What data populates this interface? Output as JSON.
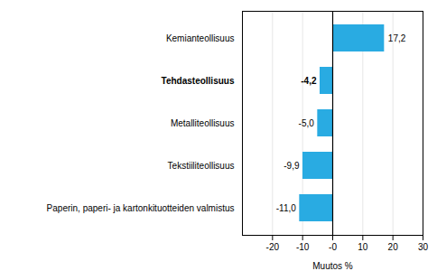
{
  "chart_data": {
    "type": "bar",
    "orientation": "horizontal",
    "categories": [
      "Paperin, paperi- ja kartonkituotteiden valmistus",
      "Tekstiiliteollisuus",
      "Metalliteollisuus",
      "Tehdasteollisuus",
      "Kemianteollisuus"
    ],
    "values": [
      -11.0,
      -9.9,
      -5.0,
      -4.2,
      17.2
    ],
    "value_labels": [
      "-11,0",
      "-9,9",
      "-5,0",
      "-4,2",
      "17,2"
    ],
    "data_labels": true,
    "color": "#29abe2",
    "xlabel": "Muutos %",
    "xlim": [
      -30,
      30
    ],
    "xticks": [
      -20,
      -10,
      {
        "value": 0,
        "label": "-0"
      },
      10,
      20,
      30
    ],
    "grid": true
  }
}
